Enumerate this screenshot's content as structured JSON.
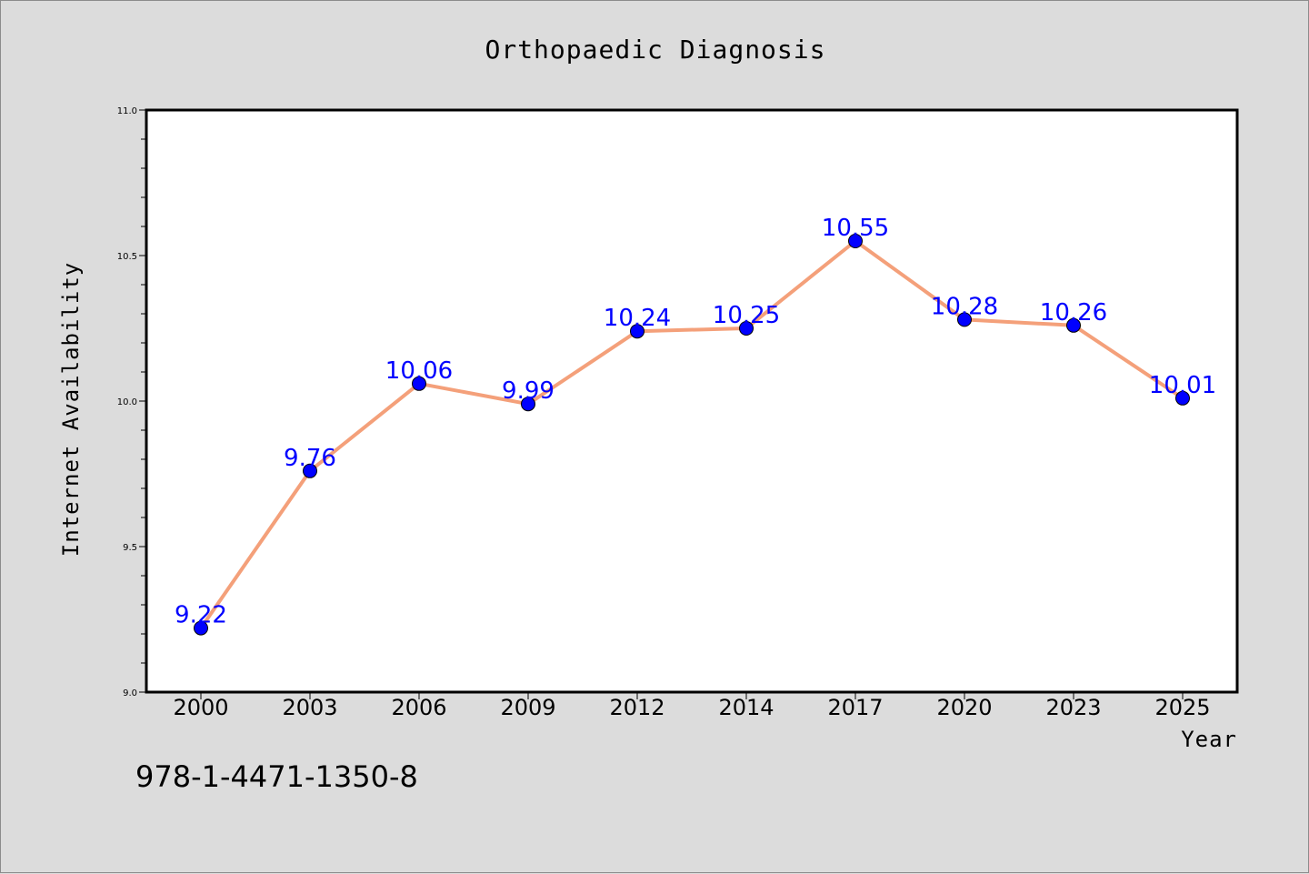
{
  "chart_data": {
    "type": "line",
    "title": "Orthopaedic Diagnosis",
    "xlabel": "Year",
    "ylabel": "Internet Availability",
    "categories": [
      "2000",
      "2003",
      "2006",
      "2009",
      "2012",
      "2014",
      "2017",
      "2020",
      "2023",
      "2025"
    ],
    "values": [
      9.22,
      9.76,
      10.06,
      9.99,
      10.24,
      10.25,
      10.55,
      10.28,
      10.26,
      10.01
    ],
    "data_labels": [
      "9.22",
      "9.76",
      "10.06",
      "9.99",
      "10.24",
      "10.25",
      "10.55",
      "10.28",
      "10.26",
      "10.01"
    ],
    "ylim": [
      9.0,
      11.0
    ],
    "yticks": [
      "9.0",
      "9.5",
      "10.0",
      "10.5",
      "11.0"
    ],
    "grid": false,
    "line_color": "#f4a07a",
    "marker_color": "#0000ff",
    "label_color": "#0000ff",
    "background": "#dcdcdc"
  },
  "annotation": "978-1-4471-1350-8"
}
